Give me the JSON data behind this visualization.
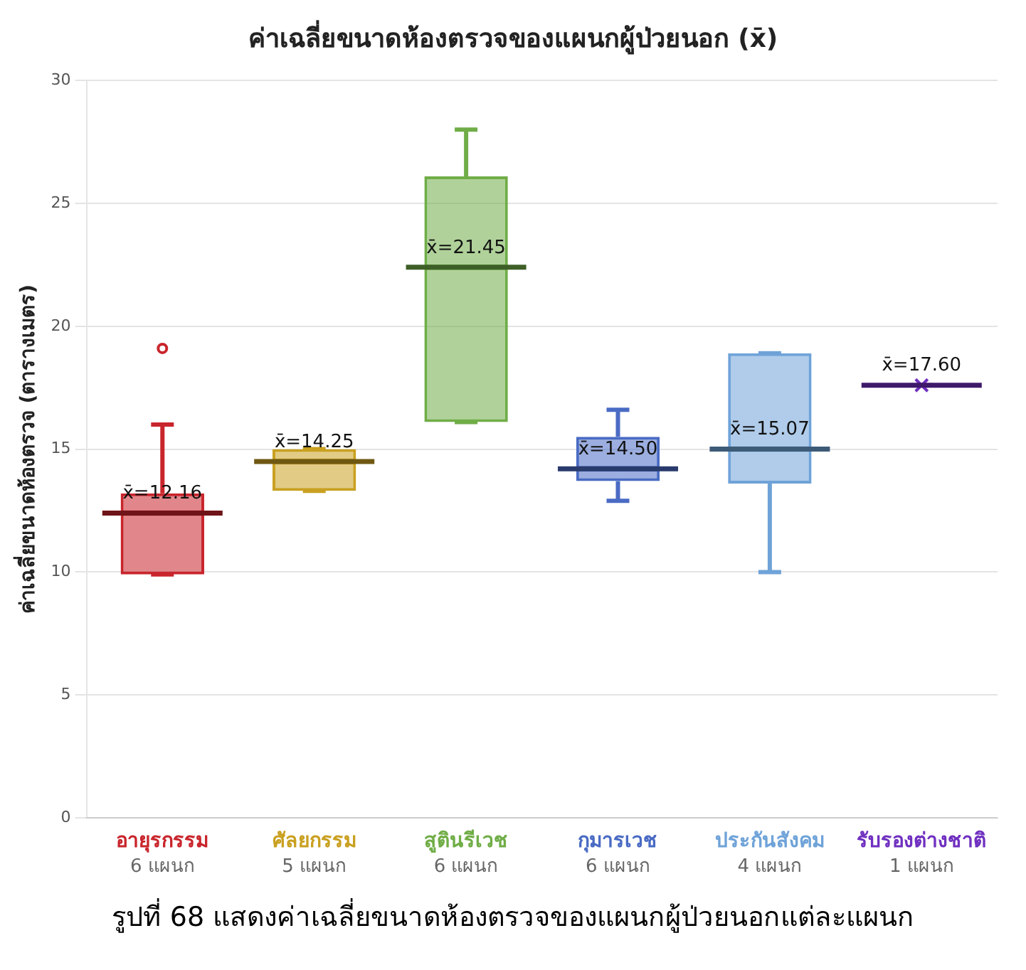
{
  "chart_data": {
    "type": "box",
    "title": "ค่าเฉลี่ยขนาดห้องตรวจของแผนกผู้ป่วยนอก (x̄)",
    "ylabel": "ค่าเฉลี่ยขนาดห้องตรวจ (ตารางเมตร)",
    "categories": [
      "อายุรกรรม\n6 แผนก",
      "ศัลยกรรม\n5 แผนก",
      "สูตินรีเวช\n6 แผนก",
      "กุมารเวช\n6 แผนก",
      "ประกันสังคม\n4 แผนก",
      "รับรองต่างชาติ\n1 แผนก"
    ],
    "colors": [
      "#c9252c",
      "#c9a020",
      "#70ad47",
      "#4a6bc4",
      "#6fa3d8",
      "#7030c0"
    ],
    "boxes": [
      {
        "low": 9.9,
        "q1": 9.9,
        "median": 12.4,
        "q3": 13.2,
        "high": 16,
        "outliers": [
          19.1
        ]
      },
      {
        "low": 13.3,
        "q1": 13.3,
        "median": 14.5,
        "q3": 15,
        "high": 15
      },
      {
        "low": 16.1,
        "q1": 16.1,
        "median": 22.4,
        "q3": 26.1,
        "high": 28
      },
      {
        "low": 12.9,
        "q1": 13.7,
        "median": 14.2,
        "q3": 15.5,
        "high": 16.6
      },
      {
        "low": 10,
        "q1": 13.6,
        "median": 15,
        "q3": 18.9,
        "high": 18.9
      },
      {
        "low": 17.6,
        "q1": 17.6,
        "median": 17.6,
        "q3": 17.6,
        "high": 17.6,
        "mean": 17.6
      }
    ],
    "ylim": [
      0,
      30
    ],
    "yticks": [
      0,
      5,
      10,
      15,
      20,
      25,
      30
    ],
    "grid": "y",
    "legend": false,
    "annotations": [
      {
        "text": "x̄=12.16",
        "x": "อายุรกรรม\n6 แผนก",
        "y": 12.4
      },
      {
        "text": "x̄=14.25",
        "x": "ศัลยกรรม\n5 แผนก",
        "y": 14.5
      },
      {
        "text": "x̄=21.45",
        "x": "สูตินรีเวช\n6 แผนก",
        "y": 22.4
      },
      {
        "text": "x̄=14.50",
        "x": "กุมารเวช\n6 แผนก",
        "y": 14.2
      },
      {
        "text": "x̄=15.07",
        "x": "ประกันสังคม\n4 แผนก",
        "y": 15
      },
      {
        "text": "x̄=17.60",
        "x": "รับรองต่างชาติ\n1 แผนก",
        "y": 17.6
      },
      "รูปที่ 68 แสดงค่าเฉลี่ยขนาดห้องตรวจของแผนกผู้ป่วยนอกแต่ละแผนก"
    ]
  }
}
